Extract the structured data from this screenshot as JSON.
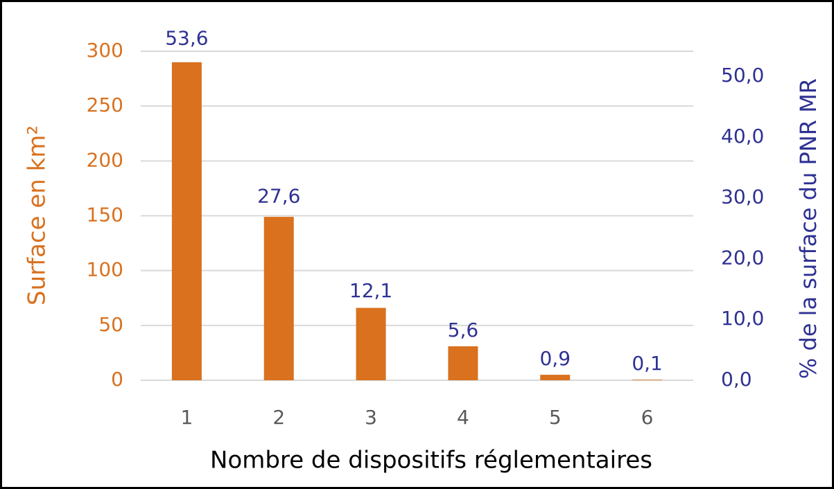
{
  "chart_data": {
    "type": "bar",
    "categories": [
      "1",
      "2",
      "3",
      "4",
      "5",
      "6"
    ],
    "xlabel": "Nombre de  dispositifs réglementaires",
    "ylabel": "Surface en km²",
    "y2label": "% de la surface du PNR MR",
    "series": [
      {
        "color": "#d9711f",
        "values": [
          290,
          149,
          66,
          31,
          5,
          0.5
        ]
      },
      {
        "color": "#2e3192",
        "axis": "y2",
        "values": [
          53.6,
          27.6,
          12.1,
          5.6,
          0.9,
          0.1
        ],
        "value_labels": [
          "53,6",
          "27,6",
          "12,1",
          "5,6",
          "0,9",
          "0,1"
        ]
      }
    ],
    "ylim": [
      0,
      300
    ],
    "yticks": [
      0,
      50,
      100,
      150,
      200,
      250,
      300
    ],
    "y2lim": [
      0,
      54.1
    ],
    "y2ticks": [
      {
        "value": 0,
        "label": "0,0"
      },
      {
        "value": 10,
        "label": "10,0"
      },
      {
        "value": 20,
        "label": "20,0"
      },
      {
        "value": 30,
        "label": "30,0"
      },
      {
        "value": 40,
        "label": "40,0"
      },
      {
        "value": 50,
        "label": "50,0"
      }
    ],
    "grid": true
  }
}
